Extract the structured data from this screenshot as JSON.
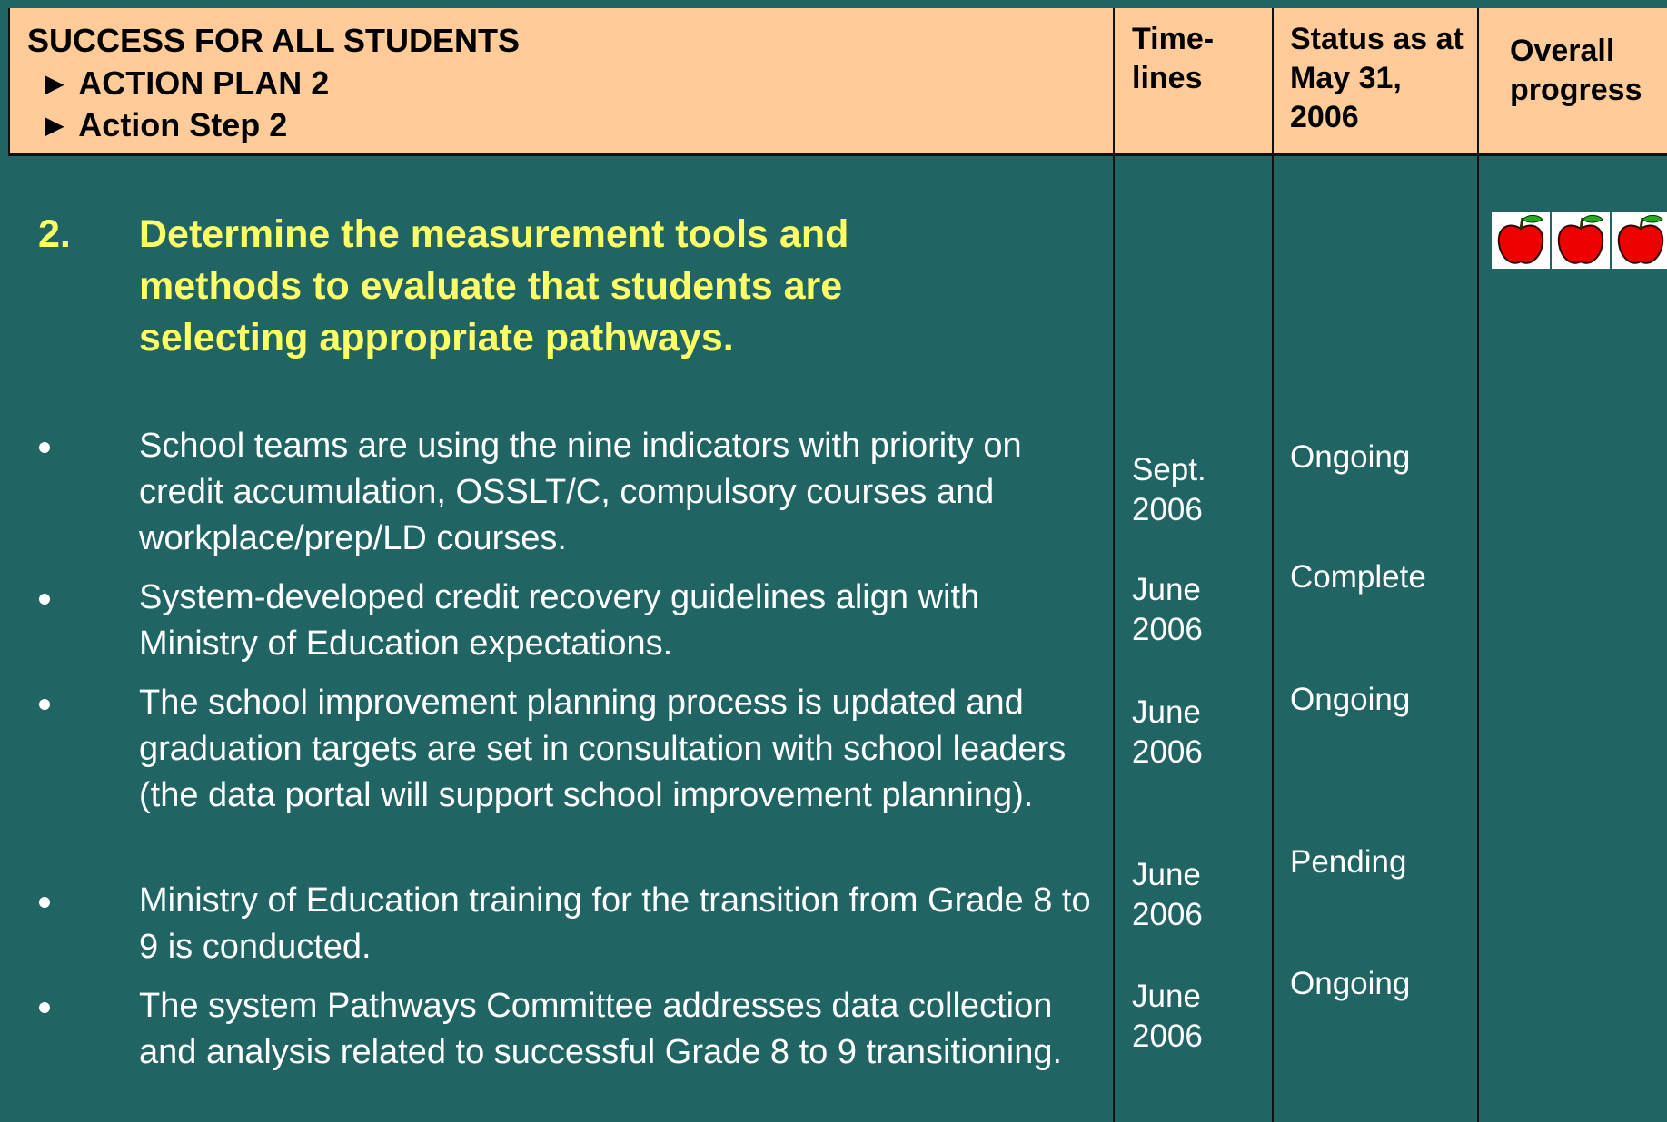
{
  "header": {
    "title": "SUCCESS FOR ALL STUDENTS",
    "action_plan": "► ACTION PLAN 2",
    "action_step": "► Action Step 2",
    "columns": [
      "Time-lines",
      "Status as at May 31, 2006",
      "Overall progress"
    ]
  },
  "step": {
    "number": "2.",
    "text": "Determine the measurement tools and methods to evaluate that students are selecting appropriate pathways."
  },
  "items": [
    {
      "text": "School teams are using the nine indicators with priority on credit accumulation, OSSLT/C, compulsory courses and workplace/prep/LD courses.",
      "timeline": "Sept. 2006",
      "status": "Ongoing"
    },
    {
      "text": "System-developed credit recovery guidelines align with Ministry of Education expectations.",
      "timeline": "June 2006",
      "status": "Complete"
    },
    {
      "text": "The school improvement planning process is updated and graduation targets are set in consultation with school leaders (the data portal will support school improvement planning).",
      "timeline": "June 2006",
      "status": "Ongoing"
    },
    {
      "text": "Ministry of Education training for the transition from Grade 8 to 9 is conducted.",
      "timeline": "June 2006",
      "status": "Pending"
    },
    {
      "text": "The system Pathways Committee addresses data collection and analysis related to successful Grade 8 to 9 transitioning.",
      "timeline": "June 2006",
      "status": "Ongoing"
    }
  ]
}
